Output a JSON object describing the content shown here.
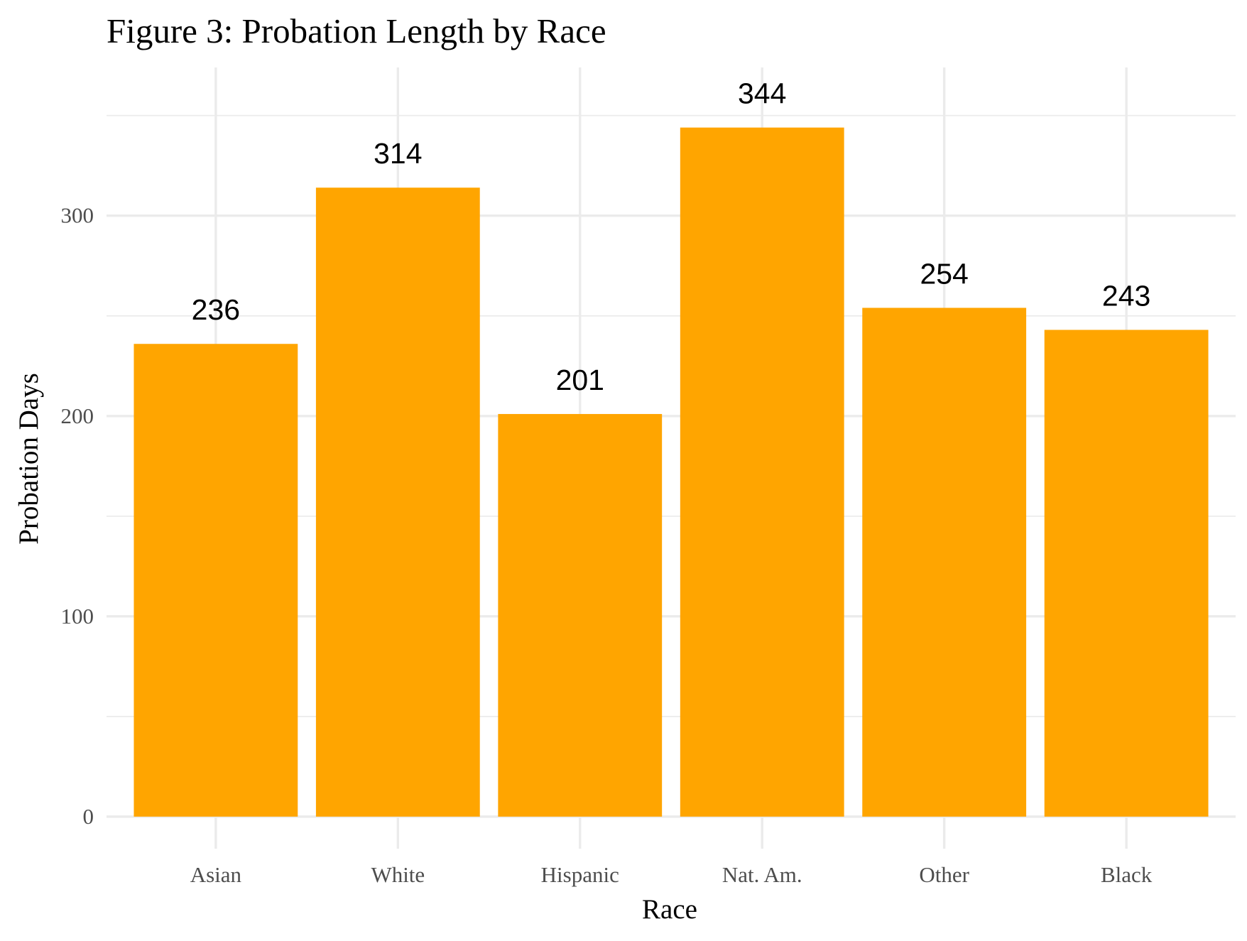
{
  "chart_data": {
    "type": "bar",
    "title": "Figure 3: Probation Length by Race",
    "xlabel": "Race",
    "ylabel": "Probation Days",
    "categories": [
      "Asian",
      "White",
      "Hispanic",
      "Nat. Am.",
      "Other",
      "Black"
    ],
    "values": [
      236,
      314,
      201,
      344,
      254,
      243
    ],
    "value_labels": [
      "236",
      "314",
      "201",
      "344",
      "254",
      "243"
    ],
    "yticks": [
      0,
      100,
      200,
      300
    ],
    "ytick_labels": [
      "0",
      "100",
      "200",
      "300"
    ],
    "yminor": [
      50,
      150,
      250,
      350
    ],
    "ylim": [
      -16,
      374
    ],
    "grid": true,
    "legend": "none",
    "bar_color": "#FFA500"
  }
}
